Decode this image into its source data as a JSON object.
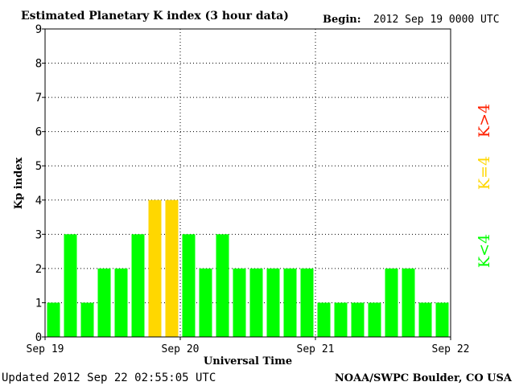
{
  "header": {
    "title": "Estimated Planetary K index (3 hour data)",
    "begin_label": "Begin:",
    "begin_value": "2012 Sep 19 0000 UTC"
  },
  "footer": {
    "updated_label": "Updated",
    "updated_value": "2012 Sep 22 02:55:05 UTC",
    "source": "NOAA/SWPC Boulder, CO USA"
  },
  "legend": {
    "below": "K<4",
    "equal": "K=4",
    "above": "K>4"
  },
  "colors": {
    "below": "#00ff00",
    "equal": "#ffd700",
    "above": "#ff2000",
    "grid": "#000000"
  },
  "chart_data": {
    "type": "bar",
    "title": "Estimated Planetary K index (3 hour data)",
    "xlabel": "Universal Time",
    "ylabel": "Kp index",
    "ylim": [
      0,
      9
    ],
    "y_ticks": [
      "0",
      "1",
      "2",
      "3",
      "4",
      "5",
      "6",
      "7",
      "8",
      "9"
    ],
    "x_tick_labels": [
      "Sep 19",
      "Sep 20",
      "Sep 21",
      "Sep 22"
    ],
    "categories": [
      "Sep 19 00",
      "Sep 19 03",
      "Sep 19 06",
      "Sep 19 09",
      "Sep 19 12",
      "Sep 19 15",
      "Sep 19 18",
      "Sep 19 21",
      "Sep 20 00",
      "Sep 20 03",
      "Sep 20 06",
      "Sep 20 09",
      "Sep 20 12",
      "Sep 20 15",
      "Sep 20 18",
      "Sep 20 21",
      "Sep 21 00",
      "Sep 21 03",
      "Sep 21 06",
      "Sep 21 09",
      "Sep 21 12",
      "Sep 21 15",
      "Sep 21 18",
      "Sep 21 21"
    ],
    "values": [
      1,
      3,
      1,
      2,
      2,
      3,
      4,
      4,
      3,
      2,
      3,
      2,
      2,
      2,
      2,
      2,
      1,
      1,
      1,
      1,
      2,
      2,
      1,
      1
    ],
    "grid": true
  }
}
